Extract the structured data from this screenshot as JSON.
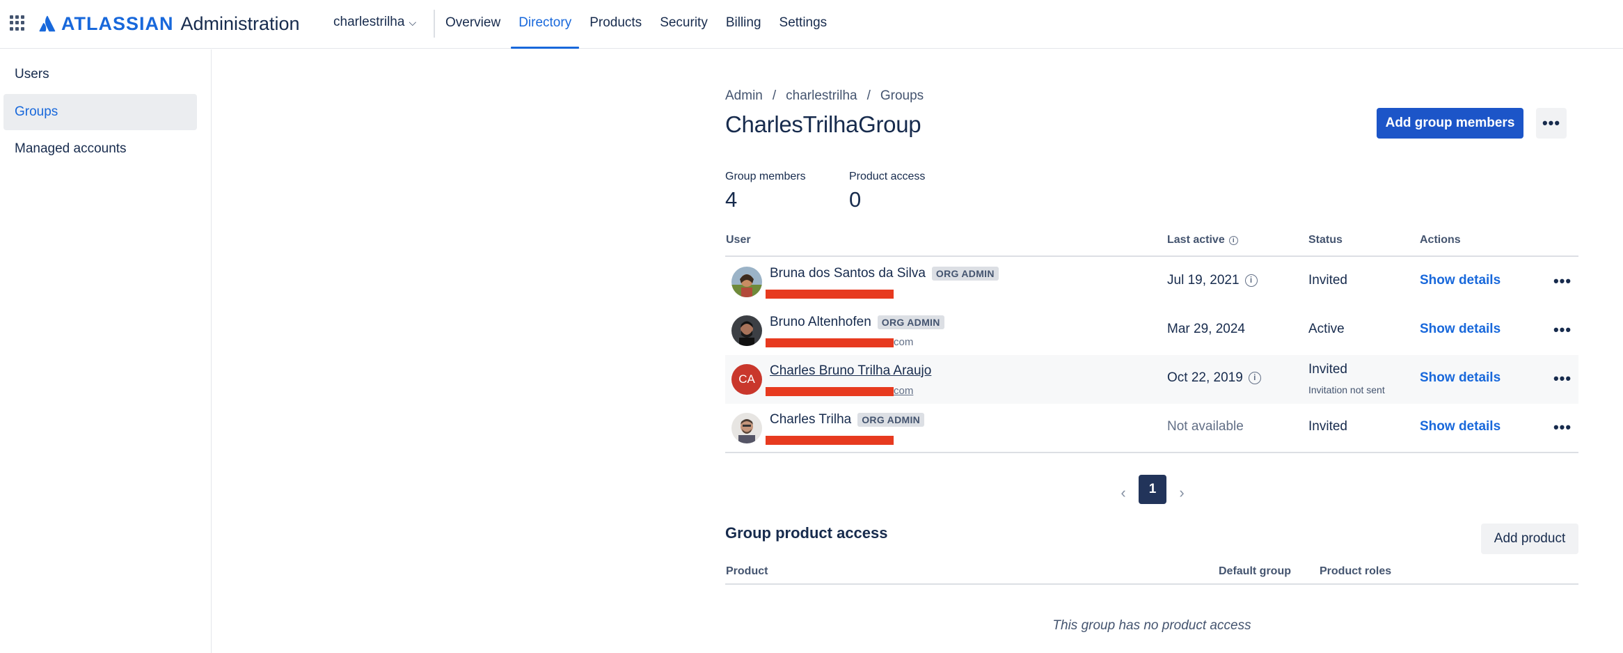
{
  "header": {
    "brand": "ATLASSIAN",
    "product": "Administration",
    "org": "charlestrilha",
    "nav": [
      {
        "label": "Overview",
        "active": false
      },
      {
        "label": "Directory",
        "active": true
      },
      {
        "label": "Products",
        "active": false
      },
      {
        "label": "Security",
        "active": false
      },
      {
        "label": "Billing",
        "active": false
      },
      {
        "label": "Settings",
        "active": false
      }
    ]
  },
  "sidebar": {
    "items": [
      {
        "label": "Users",
        "active": false
      },
      {
        "label": "Groups",
        "active": true
      },
      {
        "label": "Managed accounts",
        "active": false
      }
    ]
  },
  "breadcrumb": [
    "Admin",
    "charlestrilha",
    "Groups"
  ],
  "page": {
    "title": "CharlesTrilhaGroup",
    "add_button": "Add group members"
  },
  "stats": {
    "members_label": "Group members",
    "members_value": "4",
    "access_label": "Product access",
    "access_value": "0"
  },
  "table": {
    "headers": {
      "user": "User",
      "last_active": "Last active",
      "status": "Status",
      "actions": "Actions"
    },
    "rows": [
      {
        "name": "Bruna dos Santos da Silva",
        "badge": "ORG ADMIN",
        "email_suffix": "",
        "last_active": "Jul 19, 2021",
        "status": "Invited",
        "status_note": "",
        "action": "Show details"
      },
      {
        "name": "Bruno Altenhofen",
        "badge": "ORG ADMIN",
        "email_suffix": "com",
        "last_active": "Mar 29, 2024",
        "status": "Active",
        "status_note": "",
        "action": "Show details"
      },
      {
        "name": "Charles Bruno Trilha Araujo",
        "badge": "",
        "initials": "CA",
        "email_suffix": "com",
        "last_active": "Oct 22, 2019",
        "status": "Invited",
        "status_note": "Invitation not sent",
        "action": "Show details"
      },
      {
        "name": "Charles Trilha",
        "badge": "ORG ADMIN",
        "email_suffix": "",
        "last_active": "Not available",
        "status": "Invited",
        "status_note": "",
        "action": "Show details"
      }
    ]
  },
  "pagination": {
    "current": "1",
    "prev_icon": "chevron-left-icon",
    "next_icon": "chevron-right-icon"
  },
  "product_access": {
    "title": "Group product access",
    "add_button": "Add product",
    "headers": {
      "product": "Product",
      "default_group": "Default group",
      "roles": "Product roles"
    },
    "empty_text": "This group has no product access"
  },
  "colors": {
    "accent": "#1868db",
    "primary_button": "#1c55c8",
    "redaction": "#e73a1f",
    "pager": "#22345a"
  }
}
